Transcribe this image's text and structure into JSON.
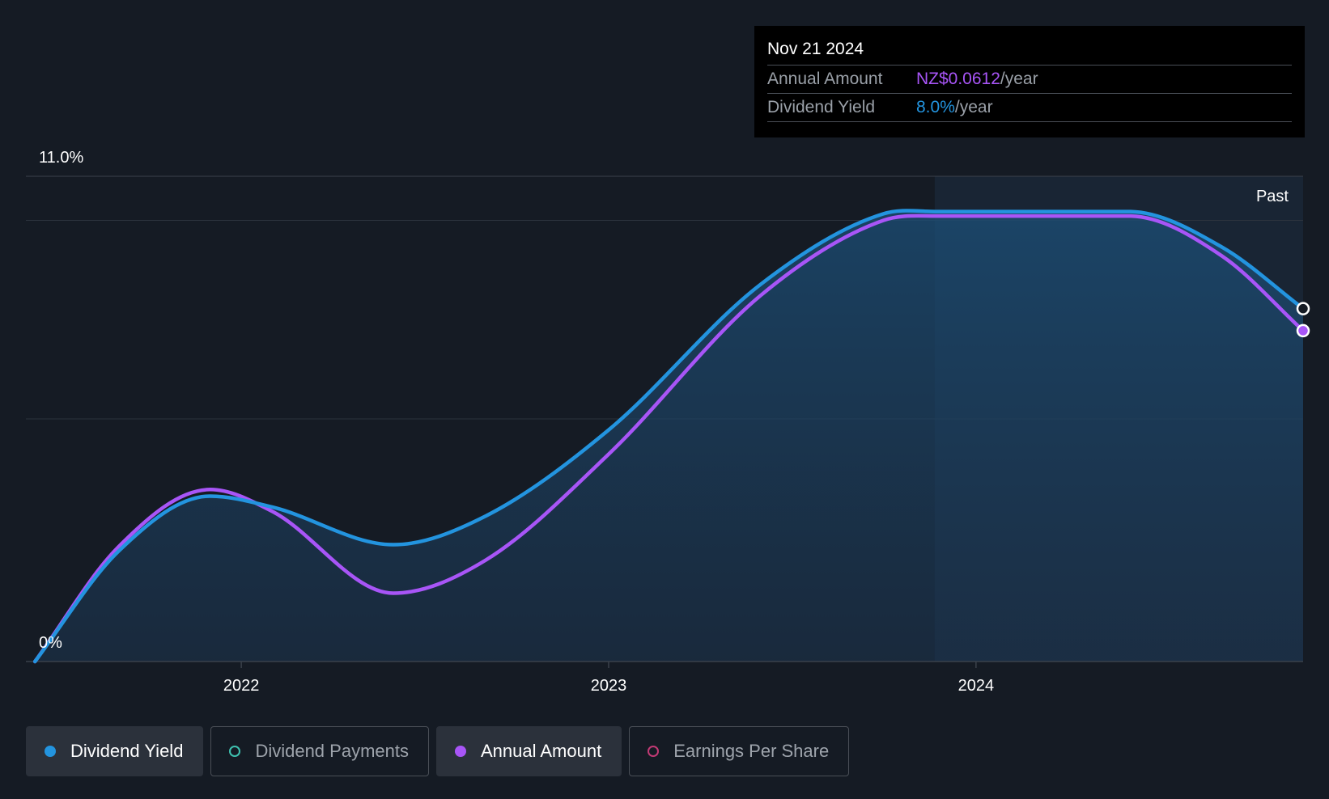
{
  "chart_data": {
    "type": "line",
    "y_top_label": "11.0%",
    "y_bottom_label": "0%",
    "ylim": [
      0,
      11.0
    ],
    "xlim": [
      "2021-06-01",
      "2024-11-21"
    ],
    "x_ticks": [
      {
        "date": "2022-01-01",
        "label": "2022"
      },
      {
        "date": "2023-01-01",
        "label": "2023"
      },
      {
        "date": "2024-01-01",
        "label": "2024"
      }
    ],
    "past_label": "Past",
    "past_start": "2023-11-21",
    "grid": true,
    "series": [
      {
        "name": "Dividend Yield",
        "color": "#2394df",
        "points": [
          [
            "2021-06-10",
            0.0
          ],
          [
            "2021-09-01",
            2.5
          ],
          [
            "2021-12-01",
            3.75
          ],
          [
            "2022-02-01",
            3.5
          ],
          [
            "2022-06-01",
            2.65
          ],
          [
            "2022-09-01",
            3.3
          ],
          [
            "2023-01-01",
            5.25
          ],
          [
            "2023-06-01",
            8.55
          ],
          [
            "2023-10-01",
            10.15
          ],
          [
            "2023-11-21",
            10.2
          ],
          [
            "2024-06-01",
            10.2
          ],
          [
            "2024-09-01",
            9.4
          ],
          [
            "2024-11-21",
            8.0
          ]
        ]
      },
      {
        "name": "Annual Amount",
        "color": "#a855f7",
        "points": [
          [
            "2021-06-10",
            0.0
          ],
          [
            "2021-09-01",
            2.6
          ],
          [
            "2021-12-01",
            3.9
          ],
          [
            "2022-02-01",
            3.4
          ],
          [
            "2022-06-01",
            1.55
          ],
          [
            "2022-09-01",
            2.3
          ],
          [
            "2023-01-01",
            4.7
          ],
          [
            "2023-06-01",
            8.3
          ],
          [
            "2023-10-01",
            10.0
          ],
          [
            "2023-11-21",
            10.1
          ],
          [
            "2024-06-01",
            10.1
          ],
          [
            "2024-09-01",
            9.2
          ],
          [
            "2024-11-21",
            7.5
          ]
        ]
      }
    ]
  },
  "tooltip": {
    "date": "Nov 21 2024",
    "rows": [
      {
        "label": "Annual Amount",
        "value": "NZ$0.0612",
        "unit": "/year"
      },
      {
        "label": "Dividend Yield",
        "value": "8.0%",
        "unit": "/year"
      }
    ]
  },
  "legend": [
    {
      "label": "Dividend Yield",
      "color": "#2394df",
      "active": true
    },
    {
      "label": "Dividend Payments",
      "color": "#3fc1b0",
      "active": false
    },
    {
      "label": "Annual Amount",
      "color": "#a855f7",
      "active": true
    },
    {
      "label": "Earnings Per Share",
      "color": "#c23a75",
      "active": false
    }
  ]
}
